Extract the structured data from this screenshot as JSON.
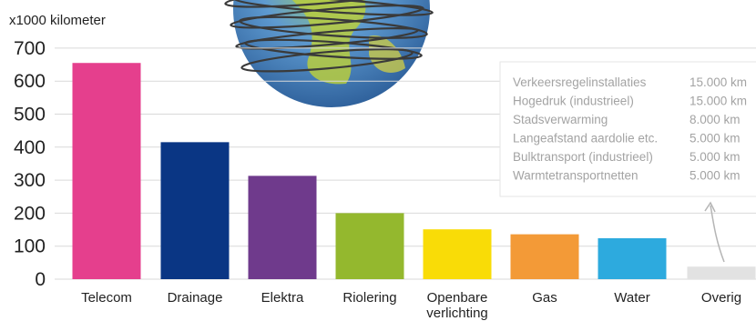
{
  "chart_data": {
    "type": "bar",
    "ylabel": "x1000 kilometer",
    "ylim": [
      0,
      700
    ],
    "yticks": [
      0,
      100,
      200,
      300,
      400,
      500,
      600,
      700
    ],
    "grid": true,
    "categories": [
      [
        "Telecom"
      ],
      [
        "Drainage"
      ],
      [
        "Elektra"
      ],
      [
        "Riolering"
      ],
      [
        "Openbare",
        "verlichting"
      ],
      [
        "Gas"
      ],
      [
        "Water"
      ],
      [
        "Overig"
      ]
    ],
    "values": [
      655,
      415,
      313,
      200,
      151,
      136,
      124,
      38
    ],
    "colors": [
      "#e53f8d",
      "#0a3684",
      "#6f3a8c",
      "#94b82e",
      "#f9dc07",
      "#f39a37",
      "#2daade",
      "#e2e2e2"
    ],
    "annotation": {
      "rows": [
        {
          "label": "Verkeersregelinstallaties",
          "value": "15.000 km"
        },
        {
          "label": "Hogedruk (industrieel)",
          "value": "15.000 km"
        },
        {
          "label": "Stadsverwarming",
          "value": "8.000 km"
        },
        {
          "label": "Langeafstand aardolie etc.",
          "value": "5.000 km"
        },
        {
          "label": "Bulktransport (industrieel)",
          "value": "5.000 km"
        },
        {
          "label": "Warmtetransportnetten",
          "value": "5.000 km"
        }
      ]
    }
  }
}
